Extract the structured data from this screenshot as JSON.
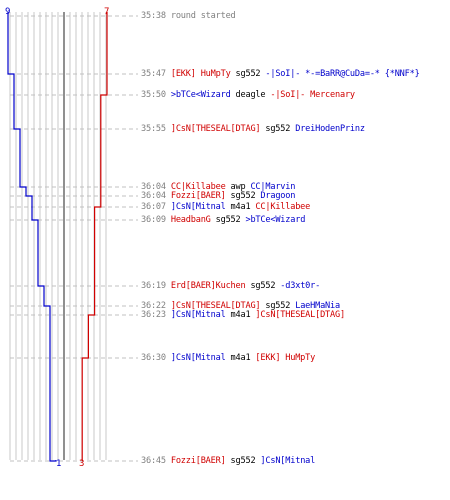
{
  "team_colors": {
    "red": "#d00000",
    "blue": "#0000cc"
  },
  "counters": {
    "blue_start": "9",
    "red_start": "7",
    "blue_end": "1",
    "red_end": "3"
  },
  "events": [
    {
      "time": "35:38",
      "system": "round started"
    },
    {
      "time": "35:47",
      "killer": "[EKK] HuMpTy",
      "killer_team": "red",
      "weapon": "sg552",
      "victim": "-|SoI|- *-=BaRR@CuDa=-* {*NNF*}",
      "victim_team": "blue",
      "blue_after": 8,
      "red_after": 7
    },
    {
      "time": "35:50",
      "killer": ">bTCe<Wizard",
      "killer_team": "blue",
      "weapon": "deagle",
      "victim": "-|SoI|- Mercenary",
      "victim_team": "red",
      "blue_after": 8,
      "red_after": 6
    },
    {
      "time": "35:55",
      "killer": "]CsN[THESEAL[DTAG]",
      "killer_team": "red",
      "weapon": "sg552",
      "victim": "DreiHodenPrinz",
      "victim_team": "blue",
      "blue_after": 7,
      "red_after": 6
    },
    {
      "time": "36:04",
      "killer": "CC|Killabee",
      "killer_team": "red",
      "weapon": "awp",
      "victim": "CC|Marvin",
      "victim_team": "blue",
      "blue_after": 6,
      "red_after": 6
    },
    {
      "time": "36:04",
      "killer": "Fozzi[BAER]",
      "killer_team": "red",
      "weapon": "sg552",
      "victim": "Dragoon",
      "victim_team": "blue",
      "blue_after": 5,
      "red_after": 6
    },
    {
      "time": "36:07",
      "killer": "]CsN[Mitnal",
      "killer_team": "blue",
      "weapon": "m4a1",
      "victim": "CC|Killabee",
      "victim_team": "red",
      "blue_after": 5,
      "red_after": 5
    },
    {
      "time": "36:09",
      "killer": "HeadbanG",
      "killer_team": "red",
      "weapon": "sg552",
      "victim": ">bTCe<Wizard",
      "victim_team": "blue",
      "blue_after": 4,
      "red_after": 5
    },
    {
      "time": "36:19",
      "killer": "Erd[BAER]Kuchen",
      "killer_team": "red",
      "weapon": "sg552",
      "victim": "-d3xt0r-",
      "victim_team": "blue",
      "blue_after": 3,
      "red_after": 5
    },
    {
      "time": "36:22",
      "killer": "]CsN[THESEAL[DTAG]",
      "killer_team": "red",
      "weapon": "sg552",
      "victim": "LaeHMaNia",
      "victim_team": "blue",
      "blue_after": 2,
      "red_after": 5
    },
    {
      "time": "36:23",
      "killer": "]CsN[Mitnal",
      "killer_team": "blue",
      "weapon": "m4a1",
      "victim": "]CsN[THESEAL[DTAG]",
      "victim_team": "red",
      "blue_after": 2,
      "red_after": 4
    },
    {
      "time": "36:30",
      "killer": "]CsN[Mitnal",
      "killer_team": "blue",
      "weapon": "m4a1",
      "victim": "[EKK] HuMpTy",
      "victim_team": "red",
      "blue_after": 2,
      "red_after": 3
    },
    {
      "time": "36:45",
      "killer": "Fozzi[BAER]",
      "killer_team": "red",
      "weapon": "sg552",
      "victim": "]CsN[Mitnal",
      "victim_team": "blue",
      "blue_after": 1,
      "red_after": 3
    }
  ]
}
